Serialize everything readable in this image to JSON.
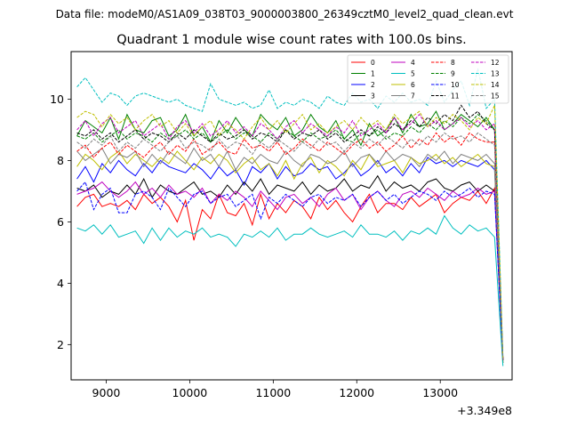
{
  "chart_data": {
    "type": "line",
    "suptitle": "Data file: modeM0/AS1A09_038T03_9000003800_26349cztM0_level2_quad_clean.evt",
    "title": "Quadrant 1 module wise count rates with 100.0s bins.",
    "xlabel": "",
    "ylabel": "",
    "x_offset_label": "+3.349e8",
    "xlim": [
      8580,
      13860
    ],
    "ylim": [
      0.85,
      11.55
    ],
    "xticks": [
      9000,
      10000,
      11000,
      12000,
      13000
    ],
    "yticks": [
      2,
      4,
      6,
      8,
      10
    ],
    "x_start": 8650,
    "x_step": 100,
    "legend_location": "upper-right",
    "series": [
      {
        "name": "0",
        "color": "#ff0000",
        "dash": "solid",
        "values": [
          6.5,
          6.8,
          6.9,
          6.5,
          6.6,
          6.5,
          6.7,
          6.4,
          6.9,
          6.6,
          6.8,
          6.5,
          6.0,
          6.7,
          5.4,
          6.4,
          6.1,
          6.9,
          6.3,
          6.2,
          6.6,
          5.9,
          6.9,
          6.1,
          6.6,
          6.3,
          6.7,
          6.5,
          6.1,
          6.8,
          6.4,
          6.7,
          6.3,
          6.0,
          6.5,
          6.9,
          6.3,
          6.6,
          6.6,
          6.4,
          6.8,
          6.5,
          6.7,
          6.9,
          6.3,
          6.6,
          6.8,
          6.7,
          7.0,
          6.6,
          7.1,
          1.4
        ]
      },
      {
        "name": "1",
        "color": "#008000",
        "dash": "solid",
        "values": [
          8.8,
          9.3,
          9.1,
          8.9,
          9.4,
          8.7,
          9.5,
          9.0,
          8.9,
          9.3,
          9.4,
          8.8,
          9.0,
          9.5,
          8.8,
          9.1,
          8.6,
          9.3,
          8.9,
          9.4,
          9.0,
          8.8,
          9.5,
          9.2,
          9.0,
          9.4,
          8.8,
          9.0,
          9.5,
          9.1,
          8.9,
          9.3,
          8.7,
          9.0,
          8.5,
          9.2,
          8.8,
          9.0,
          9.4,
          8.9,
          9.5,
          9.1,
          9.2,
          9.6,
          9.0,
          9.2,
          9.5,
          9.3,
          9.1,
          9.4,
          9.0,
          1.4
        ]
      },
      {
        "name": "2",
        "color": "#0000ff",
        "dash": "solid",
        "values": [
          7.4,
          7.8,
          7.3,
          7.9,
          7.6,
          8.0,
          7.7,
          7.5,
          7.9,
          7.6,
          8.0,
          7.8,
          7.7,
          7.6,
          7.9,
          7.7,
          7.4,
          7.8,
          7.5,
          7.7,
          7.2,
          7.8,
          7.6,
          7.9,
          7.4,
          7.8,
          7.5,
          7.6,
          7.9,
          7.7,
          7.8,
          7.4,
          7.6,
          7.9,
          7.5,
          7.7,
          8.0,
          7.6,
          7.8,
          7.5,
          7.9,
          7.6,
          8.1,
          7.9,
          8.0,
          7.8,
          8.0,
          7.9,
          7.8,
          8.0,
          7.7,
          1.5
        ]
      },
      {
        "name": "3",
        "color": "#000000",
        "dash": "solid",
        "values": [
          7.1,
          7.0,
          7.2,
          6.8,
          7.0,
          6.9,
          7.2,
          6.9,
          7.4,
          6.8,
          7.2,
          7.0,
          6.9,
          7.1,
          7.3,
          6.9,
          7.0,
          6.8,
          7.2,
          6.9,
          7.3,
          7.0,
          7.4,
          6.9,
          7.2,
          7.1,
          7.0,
          7.3,
          6.9,
          7.2,
          7.0,
          7.1,
          7.4,
          7.0,
          7.2,
          7.1,
          7.5,
          7.0,
          7.3,
          7.1,
          7.2,
          7.0,
          7.3,
          7.4,
          7.1,
          7.0,
          7.2,
          7.3,
          7.0,
          7.2,
          7.0,
          1.5
        ]
      },
      {
        "name": "4",
        "color": "#bf00bf",
        "dash": "solid",
        "values": [
          6.9,
          7.0,
          7.1,
          7.3,
          7.0,
          6.8,
          7.0,
          7.3,
          6.9,
          7.1,
          6.8,
          7.2,
          6.9,
          7.0,
          6.8,
          7.1,
          6.6,
          6.9,
          6.7,
          7.0,
          6.8,
          6.5,
          7.0,
          6.7,
          6.4,
          6.8,
          6.9,
          6.6,
          6.8,
          6.5,
          6.9,
          7.1,
          6.7,
          6.9,
          6.4,
          6.8,
          7.0,
          6.7,
          6.5,
          6.9,
          7.0,
          6.8,
          7.1,
          6.9,
          6.7,
          7.0,
          6.8,
          6.9,
          7.1,
          6.9,
          7.0,
          1.5
        ]
      },
      {
        "name": "5",
        "color": "#00bfbf",
        "dash": "solid",
        "values": [
          5.8,
          5.7,
          5.9,
          5.6,
          5.9,
          5.5,
          5.6,
          5.7,
          5.3,
          5.8,
          5.4,
          5.8,
          5.5,
          5.7,
          5.6,
          5.8,
          5.5,
          5.6,
          5.5,
          5.2,
          5.6,
          5.5,
          5.7,
          5.5,
          5.8,
          5.4,
          5.6,
          5.6,
          5.8,
          5.6,
          5.5,
          5.6,
          5.7,
          5.5,
          5.9,
          5.6,
          5.6,
          5.5,
          5.7,
          5.4,
          5.7,
          5.6,
          5.8,
          5.6,
          6.2,
          5.8,
          5.6,
          5.9,
          5.7,
          5.8,
          5.5,
          1.3
        ]
      },
      {
        "name": "6",
        "color": "#bfbf00",
        "dash": "solid",
        "values": [
          7.8,
          8.2,
          8.0,
          7.7,
          8.1,
          8.3,
          7.9,
          8.2,
          8.0,
          7.8,
          8.1,
          7.9,
          8.3,
          8.0,
          7.7,
          8.1,
          7.9,
          8.2,
          8.0,
          7.6,
          7.9,
          8.1,
          7.7,
          7.9,
          7.5,
          8.0,
          7.4,
          7.9,
          8.1,
          7.6,
          8.0,
          7.8,
          7.5,
          8.0,
          7.7,
          8.2,
          7.8,
          7.9,
          8.0,
          7.6,
          8.1,
          7.9,
          8.0,
          8.2,
          7.9,
          8.1,
          7.8,
          8.0,
          8.2,
          7.9,
          7.8,
          1.5
        ]
      },
      {
        "name": "7",
        "color": "#808080",
        "dash": "solid",
        "values": [
          8.3,
          8.0,
          8.2,
          8.4,
          7.9,
          8.2,
          8.1,
          8.3,
          7.8,
          8.2,
          7.9,
          8.3,
          8.1,
          7.9,
          8.4,
          8.0,
          8.2,
          7.8,
          8.3,
          7.7,
          8.1,
          7.9,
          8.2,
          8.0,
          7.9,
          8.3,
          8.0,
          7.8,
          8.2,
          8.1,
          7.9,
          8.0,
          8.3,
          7.8,
          8.1,
          8.2,
          7.9,
          8.3,
          8.0,
          8.2,
          8.1,
          7.8,
          8.2,
          8.0,
          8.3,
          7.9,
          8.2,
          8.1,
          8.0,
          8.2,
          7.9,
          1.5
        ]
      },
      {
        "name": "8",
        "color": "#ff0000",
        "dash": "dashed",
        "values": [
          8.3,
          8.5,
          8.1,
          8.4,
          8.6,
          8.2,
          8.5,
          8.3,
          8.1,
          8.4,
          8.6,
          8.2,
          8.5,
          8.3,
          8.7,
          8.2,
          8.4,
          8.6,
          8.3,
          8.2,
          8.7,
          8.4,
          8.5,
          8.3,
          8.6,
          8.2,
          8.4,
          8.7,
          8.5,
          8.3,
          8.6,
          8.4,
          8.2,
          8.5,
          8.7,
          8.4,
          8.6,
          8.3,
          8.5,
          8.8,
          8.4,
          8.7,
          8.5,
          8.9,
          8.6,
          8.8,
          8.5,
          8.9,
          8.7,
          8.6,
          8.6,
          1.5
        ]
      },
      {
        "name": "9",
        "color": "#008000",
        "dash": "dashed",
        "values": [
          8.8,
          8.7,
          8.9,
          8.6,
          8.8,
          9.0,
          8.7,
          8.9,
          8.8,
          8.6,
          8.9,
          8.7,
          8.8,
          9.0,
          8.7,
          8.9,
          8.6,
          8.8,
          9.0,
          8.7,
          8.9,
          8.8,
          8.6,
          8.9,
          8.7,
          9.0,
          8.8,
          8.6,
          8.9,
          8.7,
          8.8,
          9.0,
          8.7,
          8.6,
          8.9,
          8.8,
          9.0,
          8.7,
          8.9,
          8.8,
          9.1,
          8.9,
          9.2,
          9.0,
          9.3,
          9.1,
          9.4,
          9.2,
          9.5,
          9.3,
          9.0,
          1.5
        ]
      },
      {
        "name": "10",
        "color": "#0000ff",
        "dash": "dashed",
        "values": [
          7.0,
          7.3,
          6.4,
          6.9,
          7.1,
          6.3,
          6.3,
          6.9,
          7.0,
          6.8,
          6.4,
          7.1,
          6.8,
          6.5,
          6.9,
          7.0,
          6.6,
          6.8,
          6.9,
          6.5,
          6.7,
          6.9,
          6.1,
          6.8,
          6.6,
          6.9,
          6.7,
          6.5,
          6.8,
          6.9,
          6.6,
          6.8,
          6.7,
          6.9,
          6.5,
          6.8,
          7.0,
          6.7,
          6.9,
          6.6,
          6.8,
          7.0,
          6.9,
          6.7,
          7.0,
          6.8,
          6.9,
          7.1,
          6.8,
          7.0,
          6.9,
          1.5
        ]
      },
      {
        "name": "11",
        "color": "#000000",
        "dash": "dashed",
        "values": [
          8.9,
          8.8,
          9.0,
          8.7,
          8.9,
          8.6,
          8.8,
          9.0,
          8.7,
          8.9,
          8.8,
          8.6,
          8.9,
          8.7,
          9.0,
          8.8,
          8.6,
          8.9,
          8.7,
          8.8,
          9.0,
          8.7,
          8.9,
          8.8,
          8.6,
          9.0,
          8.7,
          8.9,
          8.8,
          9.0,
          8.7,
          8.9,
          8.6,
          8.8,
          9.0,
          8.8,
          9.1,
          8.9,
          9.2,
          9.0,
          9.3,
          9.1,
          9.4,
          9.2,
          9.5,
          9.3,
          9.8,
          9.4,
          9.6,
          9.2,
          9.0,
          1.5
        ]
      },
      {
        "name": "12",
        "color": "#bf00bf",
        "dash": "dashed",
        "values": [
          9.0,
          9.3,
          8.8,
          9.2,
          9.4,
          8.9,
          9.1,
          9.3,
          8.8,
          9.0,
          9.2,
          8.7,
          9.1,
          9.3,
          8.9,
          9.2,
          8.8,
          9.0,
          9.3,
          8.9,
          9.1,
          8.8,
          9.2,
          9.0,
          8.7,
          9.1,
          9.3,
          8.9,
          9.2,
          9.0,
          8.8,
          9.1,
          8.9,
          9.3,
          8.8,
          9.0,
          9.2,
          8.9,
          9.4,
          9.0,
          9.2,
          9.5,
          9.1,
          9.3,
          9.0,
          9.2,
          9.4,
          9.1,
          9.3,
          9.0,
          9.2,
          1.5
        ]
      },
      {
        "name": "13",
        "color": "#00bfbf",
        "dash": "dashed",
        "values": [
          10.4,
          10.7,
          10.3,
          9.9,
          10.2,
          10.1,
          9.8,
          10.1,
          10.2,
          10.1,
          10.0,
          9.9,
          10.0,
          9.8,
          9.7,
          9.6,
          10.5,
          10.0,
          9.9,
          9.8,
          9.9,
          9.7,
          9.8,
          10.3,
          9.7,
          9.9,
          9.8,
          10.0,
          9.9,
          9.7,
          10.1,
          9.9,
          9.8,
          10.2,
          9.9,
          10.0,
          9.7,
          10.1,
          9.9,
          10.2,
          9.9,
          10.0,
          9.8,
          10.6,
          9.9,
          10.3,
          10.6,
          9.8,
          11.0,
          9.7,
          10.0,
          1.6
        ]
      },
      {
        "name": "14",
        "color": "#bfbf00",
        "dash": "dashed",
        "values": [
          9.4,
          9.6,
          9.5,
          9.1,
          9.5,
          9.2,
          9.4,
          9.0,
          9.3,
          9.5,
          9.1,
          9.3,
          8.9,
          9.2,
          8.8,
          9.1,
          9.3,
          8.8,
          9.2,
          9.0,
          8.7,
          9.1,
          9.4,
          9.0,
          9.3,
          8.9,
          9.2,
          9.5,
          9.0,
          9.2,
          8.9,
          9.1,
          9.3,
          9.0,
          9.4,
          9.1,
          9.3,
          9.0,
          9.5,
          9.2,
          9.4,
          9.6,
          9.1,
          9.4,
          9.2,
          9.5,
          9.3,
          9.0,
          9.4,
          9.2,
          9.8,
          1.5
        ]
      },
      {
        "name": "15",
        "color": "#808080",
        "dash": "dashed",
        "values": [
          8.6,
          8.4,
          8.7,
          8.5,
          8.8,
          8.3,
          8.6,
          8.4,
          8.7,
          8.5,
          8.3,
          8.6,
          8.8,
          8.4,
          8.6,
          8.5,
          8.3,
          8.7,
          8.4,
          8.6,
          8.5,
          8.2,
          8.6,
          8.4,
          8.7,
          8.5,
          8.3,
          8.6,
          8.4,
          8.7,
          8.5,
          8.6,
          8.3,
          8.6,
          8.4,
          8.7,
          8.5,
          8.8,
          8.6,
          8.4,
          8.7,
          8.5,
          8.8,
          8.6,
          8.9,
          8.7,
          8.8,
          8.6,
          8.9,
          8.7,
          8.5,
          1.5
        ]
      }
    ]
  }
}
